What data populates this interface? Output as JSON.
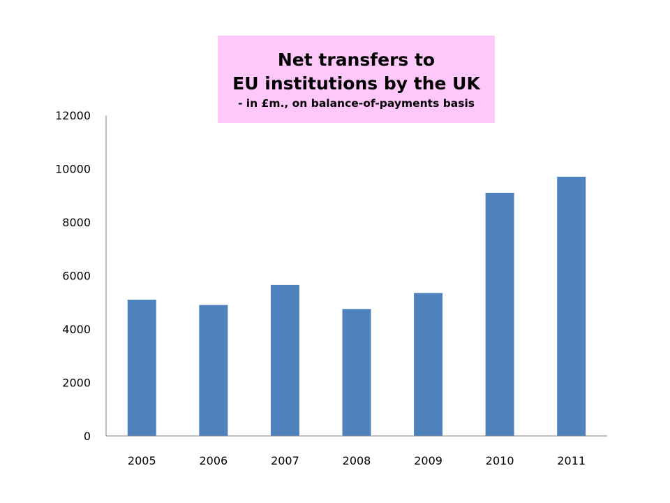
{
  "chart_data": {
    "type": "bar",
    "title_lines": [
      "Net transfers to",
      "EU institutions by the UK"
    ],
    "subtitle": "- in £m., on balance-of-payments basis",
    "xlabel": "",
    "ylabel": "",
    "categories": [
      "2005",
      "2006",
      "2007",
      "2008",
      "2009",
      "2010",
      "2011"
    ],
    "values": [
      5100,
      4900,
      5650,
      4750,
      5350,
      9100,
      9700
    ],
    "ylim": [
      0,
      12000
    ],
    "yticks": [
      0,
      2000,
      4000,
      6000,
      8000,
      10000,
      12000
    ],
    "grid": false,
    "legend": "none",
    "bar_color": "#4f81bd",
    "axis_color": "#868686",
    "title_background": "#ffc8fa"
  }
}
